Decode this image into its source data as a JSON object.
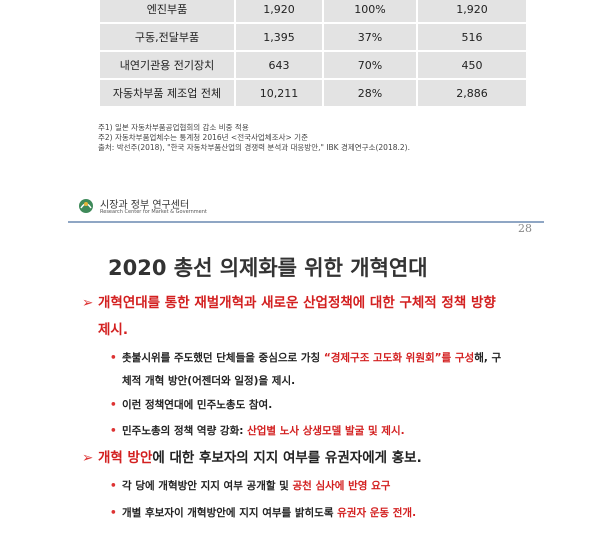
{
  "table": {
    "rows": [
      [
        "엔진부품",
        "1,920",
        "100%",
        "1,920"
      ],
      [
        "구동,전달부품",
        "1,395",
        "37%",
        "516"
      ],
      [
        "내연기관용 전기장치",
        "643",
        "70%",
        "450"
      ],
      [
        "자동차부품 제조업 전체",
        "10,211",
        "28%",
        "2,886"
      ]
    ]
  },
  "notes": [
    "주1) 일본 자동차부품공업협회의 감소 비중 적용",
    "주2) 자동차부품업체수는 통계청 2016년 <전국사업체조사> 기준",
    "출처: 박선주(2018), \"한국 자동차부품산업의 경쟁력 분석과 대응방안,\" IBK 경제연구소(2018.2)."
  ],
  "slide": {
    "org": "시장과 정부 연구센터",
    "org_en": "Research Center for Market & Government",
    "page": "28",
    "title": "2020 총선 의제화를 위한 개혁연대",
    "bullets": [
      {
        "level": 1,
        "top": 0,
        "parts": [
          {
            "text": "개혁연대를 통한 재벌개혁과 새로운 산업정책에 대한 구체적 정책 방향 제시.",
            "color": "#d32020"
          }
        ]
      },
      {
        "level": 2,
        "parts": [
          {
            "text": "촛불시위를 주도했던 단체들을 중심으로 가칭 ",
            "color": "#222"
          },
          {
            "text": "“경제구조 고도화 위원회”를 구성",
            "color": "#d32020"
          },
          {
            "text": "해, 구체적 개혁 방안(어젠더와 일정)을 제시.",
            "color": "#222"
          }
        ]
      },
      {
        "level": 2,
        "parts": [
          {
            "text": "이런 정책연대에 민주노총도 참여.",
            "color": "#222"
          }
        ]
      },
      {
        "level": 2,
        "parts": [
          {
            "text": "민주노총의 정책 역량 강화: ",
            "color": "#222"
          },
          {
            "text": "산업별 노사 상생모델 발굴 및 제시.",
            "color": "#d32020"
          }
        ]
      },
      {
        "level": 1,
        "parts": [
          {
            "text": "개혁 방안",
            "color": "#d32020"
          },
          {
            "text": "에 대한 후보자의 지지 여부를 유권자에게 홍보.",
            "color": "#222"
          }
        ]
      },
      {
        "level": 2,
        "parts": [
          {
            "text": "각 당에 개혁방안 지지 여부 공개할 및 ",
            "color": "#222"
          },
          {
            "text": "공천 심사에 반영 요구",
            "color": "#d32020"
          }
        ]
      },
      {
        "level": 2,
        "parts": [
          {
            "text": "개별 후보자이 개혁방안에 지지 여부를 밝히도록 ",
            "color": "#222"
          },
          {
            "text": "유권자 운동 전개.",
            "color": "#d32020"
          }
        ]
      }
    ]
  }
}
